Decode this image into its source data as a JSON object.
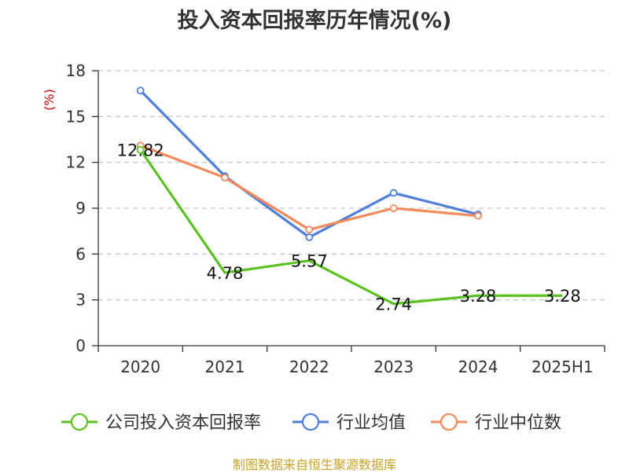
{
  "chart_data": {
    "type": "line",
    "title": "投入资本回报率历年情况(%)",
    "ylabel": "(%)",
    "categories": [
      "2020",
      "2021",
      "2022",
      "2023",
      "2024",
      "2025H1"
    ],
    "ylim": [
      0,
      18
    ],
    "yticks": [
      0,
      3,
      6,
      9,
      12,
      15,
      18
    ],
    "grid": "horizontal-dashed",
    "legend_position": "bottom",
    "series": [
      {
        "name": "公司投入资本回报率",
        "color": "#5ac21e",
        "values": [
          12.82,
          4.78,
          5.57,
          2.74,
          3.28,
          3.28
        ],
        "labels": [
          "12.82",
          "4.78",
          "5.57",
          "2.74",
          "3.28",
          "3.28"
        ],
        "markers": [
          true,
          false,
          false,
          false,
          false,
          false
        ]
      },
      {
        "name": "行业均值",
        "color": "#4f7fd9",
        "values": [
          16.7,
          11.1,
          7.1,
          10.0,
          8.6,
          null
        ],
        "markers": [
          true,
          true,
          true,
          true,
          true,
          false
        ]
      },
      {
        "name": "行业中位数",
        "color": "#f5895c",
        "values": [
          13.1,
          11.0,
          7.6,
          9.0,
          8.5,
          null
        ],
        "markers": [
          true,
          true,
          true,
          true,
          true,
          false
        ]
      }
    ]
  },
  "source_note": "制图数据来自恒生聚源数据库"
}
